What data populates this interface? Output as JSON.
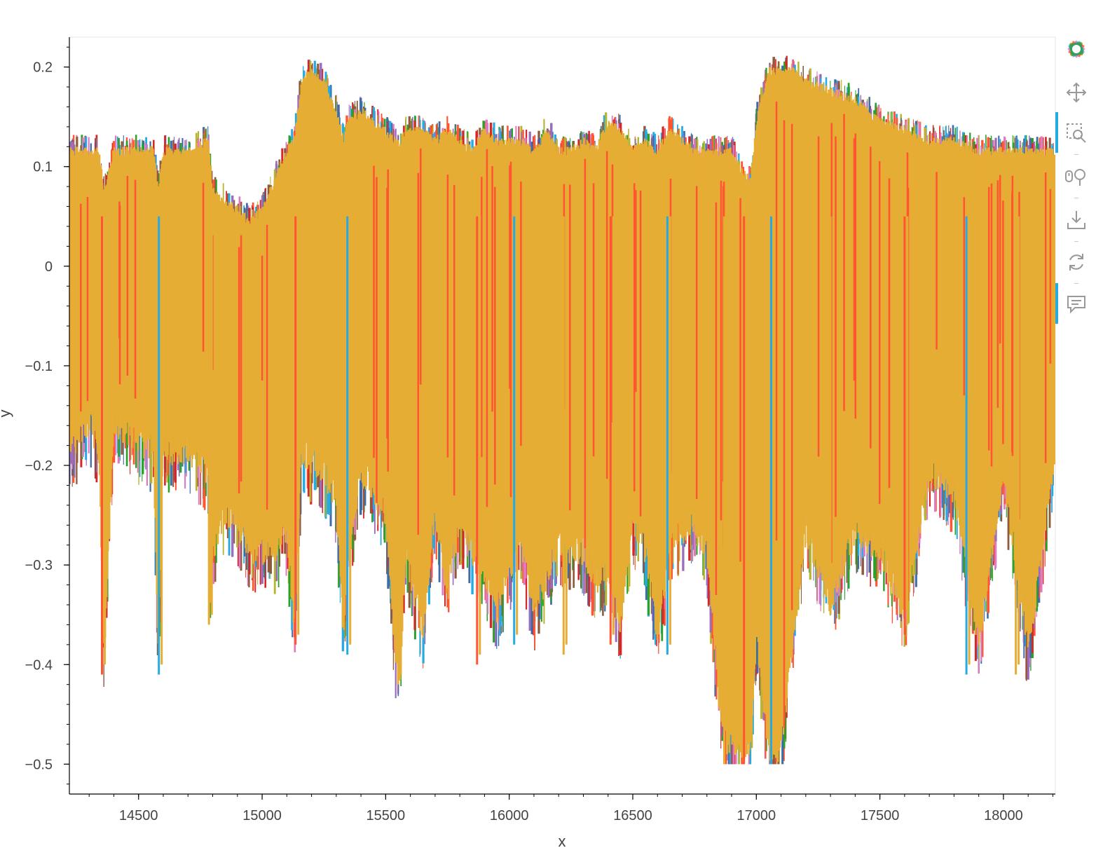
{
  "chart_data": {
    "type": "line",
    "title": "",
    "xlabel": "x",
    "ylabel": "y",
    "xlim": [
      14220,
      18210
    ],
    "ylim": [
      -0.53,
      0.23
    ],
    "x_ticks": [
      14500,
      15000,
      15500,
      16000,
      16500,
      17000,
      17500,
      18000
    ],
    "x_tick_labels": [
      "14500",
      "15000",
      "15500",
      "16000",
      "16500",
      "17000",
      "17500",
      "18000"
    ],
    "y_ticks": [
      0.2,
      0.1,
      0,
      -0.1,
      -0.2,
      -0.3,
      -0.4,
      -0.5
    ],
    "y_tick_labels": [
      "0.2",
      "0.1",
      "0",
      "−0.1",
      "−0.2",
      "−0.3",
      "−0.4",
      "−0.5"
    ],
    "grid": false,
    "legend": "none",
    "colors": [
      "#e6ad35",
      "#ff5530",
      "#26aae1",
      "#3e6ca8",
      "#b7b430",
      "#9a6dbd",
      "#e07ac0",
      "#8f5a3c",
      "#2ba02b",
      "#d62728"
    ],
    "series_envelope": {
      "x": [
        14220,
        14300,
        14340,
        14360,
        14400,
        14500,
        14560,
        14580,
        14600,
        14700,
        14780,
        14790,
        14800,
        14850,
        14900,
        14950,
        15000,
        15050,
        15100,
        15130,
        15160,
        15200,
        15250,
        15300,
        15330,
        15350,
        15400,
        15450,
        15500,
        15540,
        15560,
        15580,
        15650,
        15700,
        15750,
        15800,
        15850,
        15900,
        15950,
        16000,
        16050,
        16100,
        16150,
        16200,
        16250,
        16300,
        16350,
        16400,
        16450,
        16500,
        16550,
        16600,
        16650,
        16700,
        16750,
        16800,
        16850,
        16900,
        16940,
        16980,
        17000,
        17050,
        17100,
        17150,
        17200,
        17300,
        17400,
        17500,
        17600,
        17700,
        17800,
        17900,
        18000,
        18100,
        18210
      ],
      "upper": [
        0.12,
        0.12,
        0.12,
        0.08,
        0.12,
        0.12,
        0.12,
        0.08,
        0.12,
        0.12,
        0.13,
        0.11,
        0.08,
        0.07,
        0.06,
        0.05,
        0.06,
        0.09,
        0.12,
        0.13,
        0.19,
        0.2,
        0.19,
        0.16,
        0.13,
        0.15,
        0.16,
        0.15,
        0.14,
        0.13,
        0.13,
        0.14,
        0.14,
        0.13,
        0.14,
        0.13,
        0.12,
        0.14,
        0.13,
        0.13,
        0.13,
        0.12,
        0.14,
        0.12,
        0.12,
        0.13,
        0.12,
        0.15,
        0.14,
        0.12,
        0.13,
        0.12,
        0.14,
        0.13,
        0.12,
        0.12,
        0.12,
        0.12,
        0.1,
        0.09,
        0.15,
        0.2,
        0.2,
        0.2,
        0.19,
        0.18,
        0.17,
        0.15,
        0.14,
        0.13,
        0.13,
        0.12,
        0.12,
        0.12,
        0.12
      ],
      "lower": [
        -0.2,
        -0.17,
        -0.2,
        -0.41,
        -0.17,
        -0.19,
        -0.2,
        -0.41,
        -0.2,
        -0.2,
        -0.22,
        -0.36,
        -0.3,
        -0.26,
        -0.27,
        -0.3,
        -0.3,
        -0.3,
        -0.28,
        -0.38,
        -0.2,
        -0.21,
        -0.22,
        -0.25,
        -0.39,
        -0.3,
        -0.22,
        -0.24,
        -0.26,
        -0.41,
        -0.42,
        -0.3,
        -0.38,
        -0.26,
        -0.34,
        -0.27,
        -0.3,
        -0.32,
        -0.36,
        -0.32,
        -0.29,
        -0.36,
        -0.33,
        -0.29,
        -0.3,
        -0.3,
        -0.33,
        -0.32,
        -0.37,
        -0.27,
        -0.3,
        -0.38,
        -0.3,
        -0.28,
        -0.27,
        -0.3,
        -0.45,
        -0.5,
        -0.5,
        -0.5,
        -0.38,
        -0.5,
        -0.5,
        -0.38,
        -0.28,
        -0.35,
        -0.28,
        -0.3,
        -0.36,
        -0.22,
        -0.24,
        -0.39,
        -0.22,
        -0.4,
        -0.2
      ]
    },
    "deep_dips": [
      {
        "x": 14352,
        "y": -0.41
      },
      {
        "x": 14582,
        "y": -0.41
      },
      {
        "x": 14785,
        "y": -0.36
      },
      {
        "x": 15135,
        "y": -0.38
      },
      {
        "x": 15345,
        "y": -0.39
      },
      {
        "x": 15550,
        "y": -0.42
      },
      {
        "x": 15870,
        "y": -0.4
      },
      {
        "x": 16020,
        "y": -0.38
      },
      {
        "x": 16220,
        "y": -0.39
      },
      {
        "x": 16410,
        "y": -0.38
      },
      {
        "x": 16640,
        "y": -0.39
      },
      {
        "x": 16870,
        "y": -0.5
      },
      {
        "x": 16950,
        "y": -0.5
      },
      {
        "x": 17060,
        "y": -0.5
      },
      {
        "x": 17300,
        "y": -0.35
      },
      {
        "x": 17600,
        "y": -0.37
      },
      {
        "x": 17850,
        "y": -0.41
      },
      {
        "x": 18050,
        "y": -0.41
      }
    ]
  },
  "toolbar": {
    "logo": "bokeh-logo-icon",
    "tools": [
      "pan-icon",
      "box-zoom-icon",
      "wheel-zoom-icon",
      "save-icon",
      "reset-icon",
      "hover-icon"
    ]
  }
}
